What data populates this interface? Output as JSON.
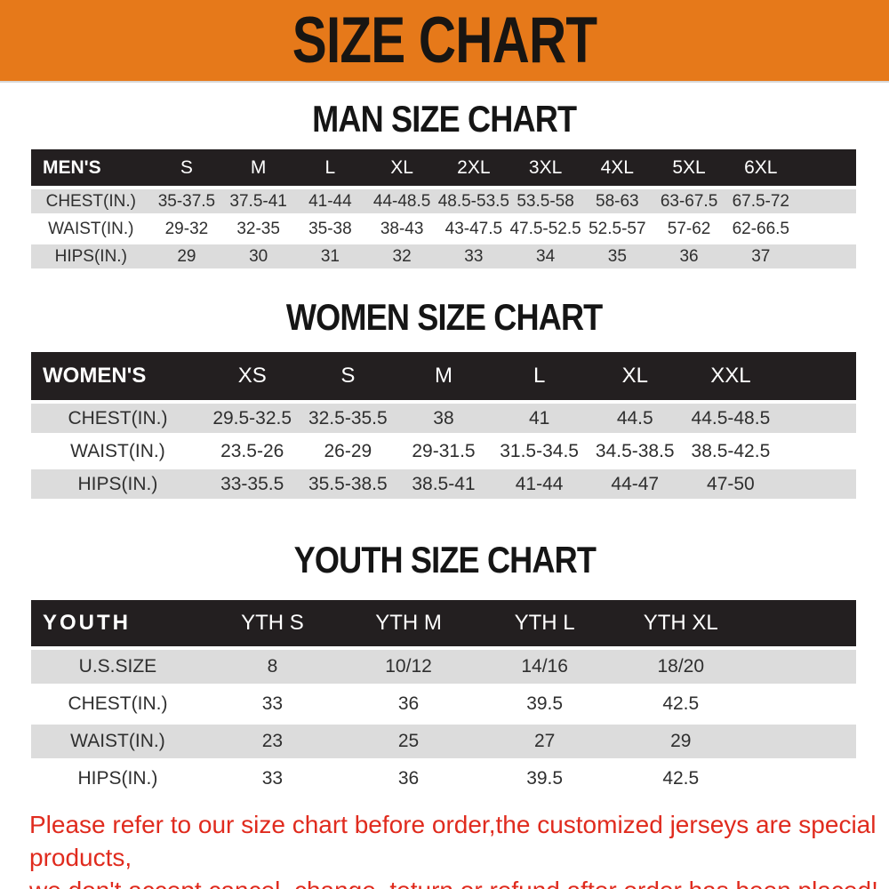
{
  "banner": {
    "title": "SIZE CHART",
    "bg_color": "#e6791a",
    "text_color": "#181512"
  },
  "colors": {
    "table_header_bg": "#231f20",
    "row_stripe_gray": "#dcdcdc",
    "row_stripe_white": "#ffffff",
    "footer_red": "#e02b1e"
  },
  "chart_data": [
    {
      "type": "table",
      "title": "MAN SIZE CHART",
      "header_label": "MEN'S",
      "columns": [
        "S",
        "M",
        "L",
        "XL",
        "2XL",
        "3XL",
        "4XL",
        "5XL",
        "6XL"
      ],
      "rows": [
        {
          "label": "CHEST(IN.)",
          "values": [
            "35-37.5",
            "37.5-41",
            "41-44",
            "44-48.5",
            "48.5-53.5",
            "53.5-58",
            "58-63",
            "63-67.5",
            "67.5-72"
          ]
        },
        {
          "label": "WAIST(IN.)",
          "values": [
            "29-32",
            "32-35",
            "35-38",
            "38-43",
            "43-47.5",
            "47.5-52.5",
            "52.5-57",
            "57-62",
            "62-66.5"
          ]
        },
        {
          "label": "HIPS(IN.)",
          "values": [
            "29",
            "30",
            "31",
            "32",
            "33",
            "34",
            "35",
            "36",
            "37"
          ]
        }
      ]
    },
    {
      "type": "table",
      "title": "WOMEN SIZE CHART",
      "header_label": "WOMEN'S",
      "columns": [
        "XS",
        "S",
        "M",
        "L",
        "XL",
        "XXL"
      ],
      "rows": [
        {
          "label": "CHEST(IN.)",
          "values": [
            "29.5-32.5",
            "32.5-35.5",
            "38",
            "41",
            "44.5",
            "44.5-48.5"
          ]
        },
        {
          "label": "WAIST(IN.)",
          "values": [
            "23.5-26",
            "26-29",
            "29-31.5",
            "31.5-34.5",
            "34.5-38.5",
            "38.5-42.5"
          ]
        },
        {
          "label": "HIPS(IN.)",
          "values": [
            "33-35.5",
            "35.5-38.5",
            "38.5-41",
            "41-44",
            "44-47",
            "47-50"
          ]
        }
      ]
    },
    {
      "type": "table",
      "title": "YOUTH SIZE CHART",
      "header_label": "YOUTH",
      "columns": [
        "YTH S",
        "YTH M",
        "YTH L",
        "YTH XL"
      ],
      "rows": [
        {
          "label": "U.S.SIZE",
          "values": [
            "8",
            "10/12",
            "14/16",
            "18/20"
          ]
        },
        {
          "label": "CHEST(IN.)",
          "values": [
            "33",
            "36",
            "39.5",
            "42.5"
          ]
        },
        {
          "label": "WAIST(IN.)",
          "values": [
            "23",
            "25",
            "27",
            "29"
          ]
        },
        {
          "label": "HIPS(IN.)",
          "values": [
            "33",
            "36",
            "39.5",
            "42.5"
          ]
        }
      ]
    }
  ],
  "footer": {
    "line1": "Please refer to our size chart before order,the customized jerseys are special products,",
    "line2": "we don't accept cancel, change, teturn or refund after order has been placed!"
  }
}
